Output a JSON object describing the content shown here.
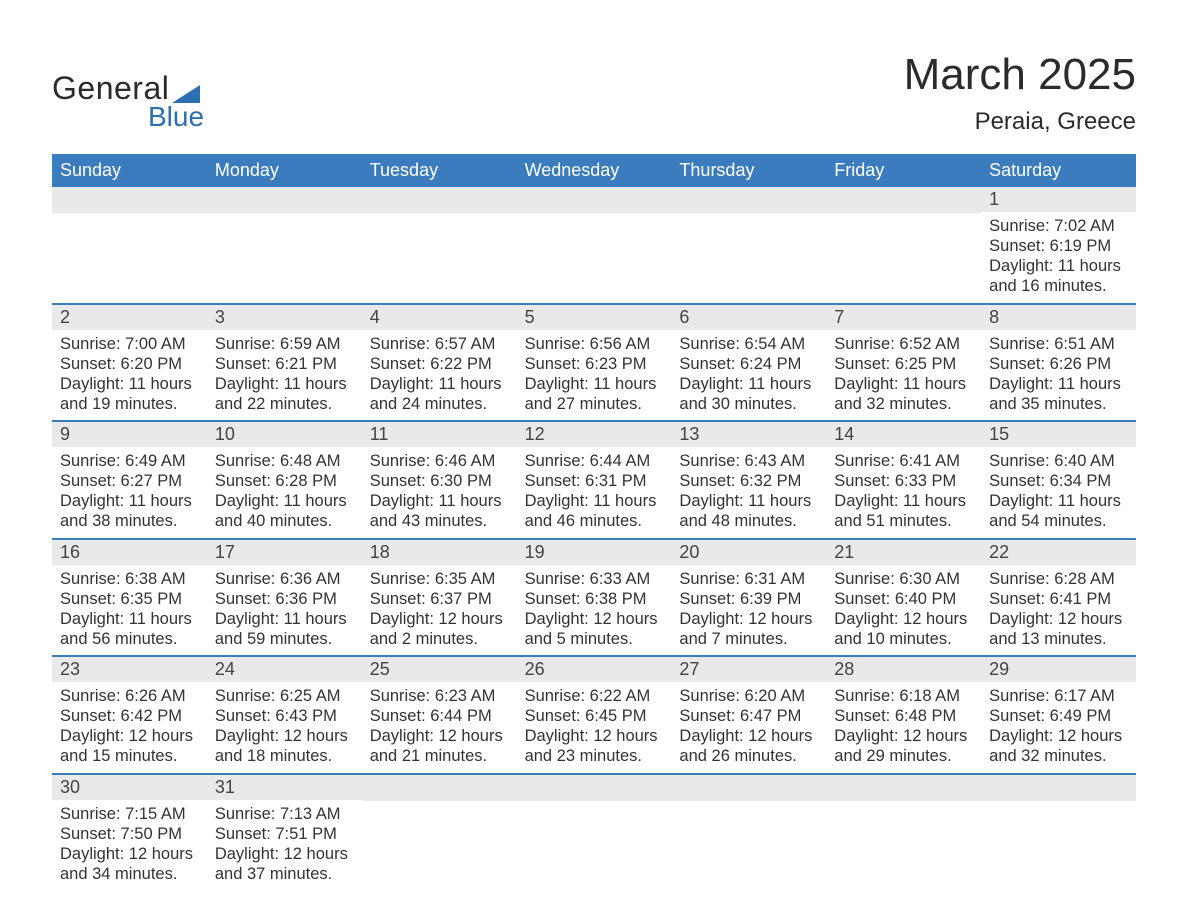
{
  "logo": {
    "general": "General",
    "blue": "Blue"
  },
  "title": "March 2025",
  "subtitle": "Peraia, Greece",
  "colors": {
    "header_bg": "#3b7cbf",
    "header_text": "#ffffff",
    "daynum_bg": "#e9e9e9",
    "week_divider": "#3b7cbf",
    "text": "#333333",
    "logo_accent": "#2d6fb3"
  },
  "day_labels": [
    "Sunday",
    "Monday",
    "Tuesday",
    "Wednesday",
    "Thursday",
    "Friday",
    "Saturday"
  ],
  "weeks": [
    [
      {
        "empty": true
      },
      {
        "empty": true
      },
      {
        "empty": true
      },
      {
        "empty": true
      },
      {
        "empty": true
      },
      {
        "empty": true
      },
      {
        "num": "1",
        "sunrise": "Sunrise: 7:02 AM",
        "sunset": "Sunset: 6:19 PM",
        "daylight": "Daylight: 11 hours and 16 minutes."
      }
    ],
    [
      {
        "num": "2",
        "sunrise": "Sunrise: 7:00 AM",
        "sunset": "Sunset: 6:20 PM",
        "daylight": "Daylight: 11 hours and 19 minutes."
      },
      {
        "num": "3",
        "sunrise": "Sunrise: 6:59 AM",
        "sunset": "Sunset: 6:21 PM",
        "daylight": "Daylight: 11 hours and 22 minutes."
      },
      {
        "num": "4",
        "sunrise": "Sunrise: 6:57 AM",
        "sunset": "Sunset: 6:22 PM",
        "daylight": "Daylight: 11 hours and 24 minutes."
      },
      {
        "num": "5",
        "sunrise": "Sunrise: 6:56 AM",
        "sunset": "Sunset: 6:23 PM",
        "daylight": "Daylight: 11 hours and 27 minutes."
      },
      {
        "num": "6",
        "sunrise": "Sunrise: 6:54 AM",
        "sunset": "Sunset: 6:24 PM",
        "daylight": "Daylight: 11 hours and 30 minutes."
      },
      {
        "num": "7",
        "sunrise": "Sunrise: 6:52 AM",
        "sunset": "Sunset: 6:25 PM",
        "daylight": "Daylight: 11 hours and 32 minutes."
      },
      {
        "num": "8",
        "sunrise": "Sunrise: 6:51 AM",
        "sunset": "Sunset: 6:26 PM",
        "daylight": "Daylight: 11 hours and 35 minutes."
      }
    ],
    [
      {
        "num": "9",
        "sunrise": "Sunrise: 6:49 AM",
        "sunset": "Sunset: 6:27 PM",
        "daylight": "Daylight: 11 hours and 38 minutes."
      },
      {
        "num": "10",
        "sunrise": "Sunrise: 6:48 AM",
        "sunset": "Sunset: 6:28 PM",
        "daylight": "Daylight: 11 hours and 40 minutes."
      },
      {
        "num": "11",
        "sunrise": "Sunrise: 6:46 AM",
        "sunset": "Sunset: 6:30 PM",
        "daylight": "Daylight: 11 hours and 43 minutes."
      },
      {
        "num": "12",
        "sunrise": "Sunrise: 6:44 AM",
        "sunset": "Sunset: 6:31 PM",
        "daylight": "Daylight: 11 hours and 46 minutes."
      },
      {
        "num": "13",
        "sunrise": "Sunrise: 6:43 AM",
        "sunset": "Sunset: 6:32 PM",
        "daylight": "Daylight: 11 hours and 48 minutes."
      },
      {
        "num": "14",
        "sunrise": "Sunrise: 6:41 AM",
        "sunset": "Sunset: 6:33 PM",
        "daylight": "Daylight: 11 hours and 51 minutes."
      },
      {
        "num": "15",
        "sunrise": "Sunrise: 6:40 AM",
        "sunset": "Sunset: 6:34 PM",
        "daylight": "Daylight: 11 hours and 54 minutes."
      }
    ],
    [
      {
        "num": "16",
        "sunrise": "Sunrise: 6:38 AM",
        "sunset": "Sunset: 6:35 PM",
        "daylight": "Daylight: 11 hours and 56 minutes."
      },
      {
        "num": "17",
        "sunrise": "Sunrise: 6:36 AM",
        "sunset": "Sunset: 6:36 PM",
        "daylight": "Daylight: 11 hours and 59 minutes."
      },
      {
        "num": "18",
        "sunrise": "Sunrise: 6:35 AM",
        "sunset": "Sunset: 6:37 PM",
        "daylight": "Daylight: 12 hours and 2 minutes."
      },
      {
        "num": "19",
        "sunrise": "Sunrise: 6:33 AM",
        "sunset": "Sunset: 6:38 PM",
        "daylight": "Daylight: 12 hours and 5 minutes."
      },
      {
        "num": "20",
        "sunrise": "Sunrise: 6:31 AM",
        "sunset": "Sunset: 6:39 PM",
        "daylight": "Daylight: 12 hours and 7 minutes."
      },
      {
        "num": "21",
        "sunrise": "Sunrise: 6:30 AM",
        "sunset": "Sunset: 6:40 PM",
        "daylight": "Daylight: 12 hours and 10 minutes."
      },
      {
        "num": "22",
        "sunrise": "Sunrise: 6:28 AM",
        "sunset": "Sunset: 6:41 PM",
        "daylight": "Daylight: 12 hours and 13 minutes."
      }
    ],
    [
      {
        "num": "23",
        "sunrise": "Sunrise: 6:26 AM",
        "sunset": "Sunset: 6:42 PM",
        "daylight": "Daylight: 12 hours and 15 minutes."
      },
      {
        "num": "24",
        "sunrise": "Sunrise: 6:25 AM",
        "sunset": "Sunset: 6:43 PM",
        "daylight": "Daylight: 12 hours and 18 minutes."
      },
      {
        "num": "25",
        "sunrise": "Sunrise: 6:23 AM",
        "sunset": "Sunset: 6:44 PM",
        "daylight": "Daylight: 12 hours and 21 minutes."
      },
      {
        "num": "26",
        "sunrise": "Sunrise: 6:22 AM",
        "sunset": "Sunset: 6:45 PM",
        "daylight": "Daylight: 12 hours and 23 minutes."
      },
      {
        "num": "27",
        "sunrise": "Sunrise: 6:20 AM",
        "sunset": "Sunset: 6:47 PM",
        "daylight": "Daylight: 12 hours and 26 minutes."
      },
      {
        "num": "28",
        "sunrise": "Sunrise: 6:18 AM",
        "sunset": "Sunset: 6:48 PM",
        "daylight": "Daylight: 12 hours and 29 minutes."
      },
      {
        "num": "29",
        "sunrise": "Sunrise: 6:17 AM",
        "sunset": "Sunset: 6:49 PM",
        "daylight": "Daylight: 12 hours and 32 minutes."
      }
    ],
    [
      {
        "num": "30",
        "sunrise": "Sunrise: 7:15 AM",
        "sunset": "Sunset: 7:50 PM",
        "daylight": "Daylight: 12 hours and 34 minutes."
      },
      {
        "num": "31",
        "sunrise": "Sunrise: 7:13 AM",
        "sunset": "Sunset: 7:51 PM",
        "daylight": "Daylight: 12 hours and 37 minutes."
      },
      {
        "empty": true
      },
      {
        "empty": true
      },
      {
        "empty": true
      },
      {
        "empty": true
      },
      {
        "empty": true
      }
    ]
  ]
}
